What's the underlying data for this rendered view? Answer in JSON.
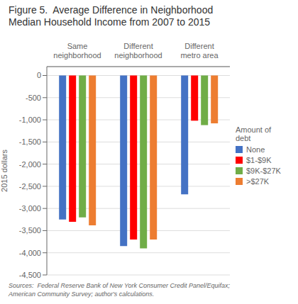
{
  "chart_data": {
    "type": "bar",
    "title": "Figure 5.  Average Difference in Neighborhood\nMedian Household Income from 2007 to 2015",
    "ylabel": "2015 dollars",
    "footnote": "Sources:  Federal Reserve Bank of New York Consumer Credit Panel/Equifax;\nAmerican Community Survey; author's calculations.",
    "legend_title": "Amount of\ndebt",
    "categories": [
      "Same\nneighborhood",
      "Different\nneighborhood",
      "Different\nmetro area"
    ],
    "series": [
      {
        "name": "None",
        "color": "#4472C4",
        "values": [
          -3250,
          -3850,
          -2680
        ]
      },
      {
        "name": "$1-$9K",
        "color": "#FF0000",
        "values": [
          -3300,
          -3700,
          -1020
        ]
      },
      {
        "name": "$9K-$27K",
        "color": "#70AD47",
        "values": [
          -3200,
          -3900,
          -1120
        ]
      },
      {
        "name": ">$27K",
        "color": "#ED7D31",
        "values": [
          -3380,
          -3700,
          -1080
        ]
      }
    ],
    "ylim": [
      -4500,
      200
    ],
    "yticks": [
      0,
      -500,
      {
        "value": -1000,
        "label": "-1,000"
      },
      {
        "value": -1500,
        "label": "-1,500"
      },
      {
        "value": -2000,
        "label": "-2,000"
      },
      {
        "value": -2500,
        "label": "-2,500"
      },
      {
        "value": -3000,
        "label": "-3,000"
      },
      {
        "value": -3500,
        "label": "-3,500"
      },
      {
        "value": -4000,
        "label": "-4,000"
      },
      {
        "value": -4500,
        "label": "-4,500"
      }
    ],
    "grid": true,
    "legend": "right"
  }
}
